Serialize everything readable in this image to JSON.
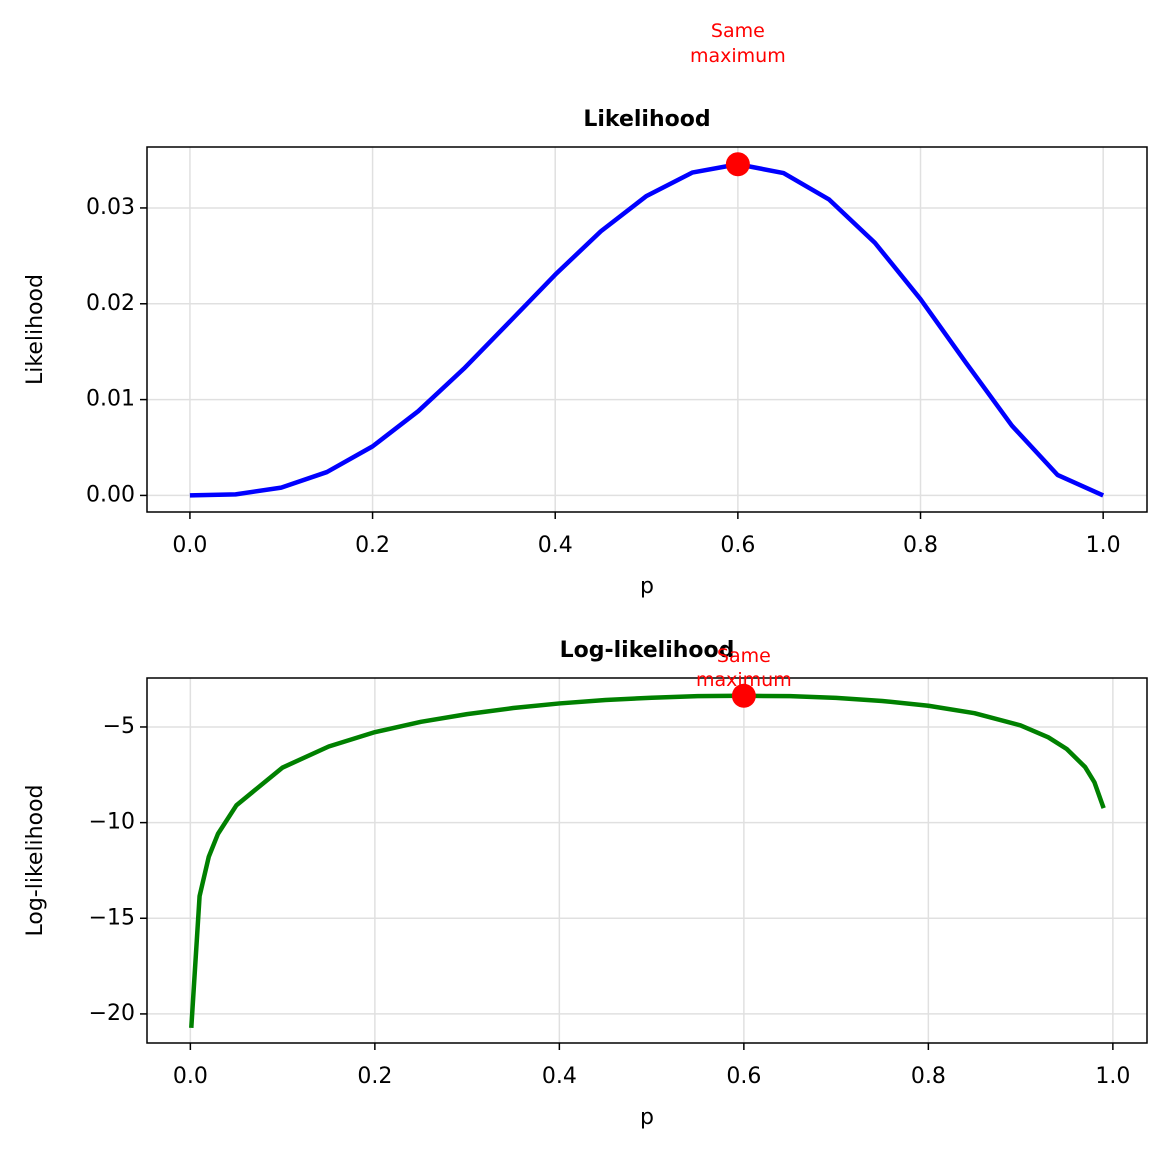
{
  "chart_data": [
    {
      "type": "line",
      "title": "Likelihood",
      "xlabel": "p",
      "ylabel": "Likelihood",
      "x": [
        0,
        0.05,
        0.1,
        0.15,
        0.2,
        0.25,
        0.3,
        0.35,
        0.4,
        0.45,
        0.5,
        0.55,
        0.6,
        0.65,
        0.7,
        0.75,
        0.8,
        0.85,
        0.9,
        0.95,
        1.0
      ],
      "series": [
        {
          "color": "#0000ff",
          "values": [
            0,
            0.000113,
            0.00081,
            0.002438,
            0.00512,
            0.008789,
            0.01323,
            0.018115,
            0.02304,
            0.027565,
            0.03125,
            0.033691,
            0.03456,
            0.033642,
            0.03087,
            0.026367,
            0.02048,
            0.013818,
            0.00729,
            0.002143,
            0
          ]
        }
      ],
      "marker": {
        "x": 0.6,
        "y": 0.03456,
        "color": "#ff0000"
      },
      "annotation": {
        "text": "Same\nmaximum",
        "color": "#ff0000"
      },
      "xlim": [
        -0.047,
        1.048
      ],
      "ylim": [
        -0.00173,
        0.03636
      ],
      "xticks": [
        {
          "value": 0,
          "label": "0.0"
        },
        {
          "value": 0.2,
          "label": "0.2"
        },
        {
          "value": 0.4,
          "label": "0.4"
        },
        {
          "value": 0.6,
          "label": "0.6"
        },
        {
          "value": 0.8,
          "label": "0.8"
        },
        {
          "value": 1.0,
          "label": "1.0"
        }
      ],
      "yticks": [
        {
          "value": 0,
          "label": "0.00"
        },
        {
          "value": 0.01,
          "label": "0.01"
        },
        {
          "value": 0.02,
          "label": "0.02"
        },
        {
          "value": 0.03,
          "label": "0.03"
        }
      ],
      "grid": true
    },
    {
      "type": "line",
      "title": "Log-likelihood",
      "xlabel": "p",
      "ylabel": "Log-likelihood",
      "x": [
        0.001,
        0.01,
        0.02,
        0.03,
        0.05,
        0.1,
        0.15,
        0.2,
        0.25,
        0.3,
        0.35,
        0.4,
        0.45,
        0.5,
        0.55,
        0.6,
        0.65,
        0.7,
        0.75,
        0.8,
        0.85,
        0.9,
        0.93,
        0.95,
        0.97,
        0.98,
        0.99
      ],
      "series": [
        {
          "color": "#008000",
          "values": [
            -20.73,
            -13.84,
            -11.78,
            -10.58,
            -9.09,
            -7.12,
            -6.02,
            -5.27,
            -4.73,
            -4.33,
            -4.01,
            -3.77,
            -3.59,
            -3.47,
            -3.39,
            -3.37,
            -3.39,
            -3.48,
            -3.64,
            -3.89,
            -4.28,
            -4.92,
            -5.54,
            -6.15,
            -7.1,
            -7.89,
            -9.24
          ]
        }
      ],
      "marker": {
        "x": 0.6,
        "y": -3.37,
        "color": "#ff0000"
      },
      "annotation": {
        "text": "Same\nmaximum",
        "color": "#ff0000"
      },
      "xlim": [
        -0.047,
        1.037
      ],
      "ylim": [
        -21.52,
        -2.44
      ],
      "xticks": [
        {
          "value": 0,
          "label": "0.0"
        },
        {
          "value": 0.2,
          "label": "0.2"
        },
        {
          "value": 0.4,
          "label": "0.4"
        },
        {
          "value": 0.6,
          "label": "0.6"
        },
        {
          "value": 0.8,
          "label": "0.8"
        },
        {
          "value": 1.0,
          "label": "1.0"
        }
      ],
      "yticks": [
        {
          "value": -20,
          "label": "−20"
        },
        {
          "value": -15,
          "label": "−15"
        },
        {
          "value": -10,
          "label": "−10"
        },
        {
          "value": -5,
          "label": "−5"
        }
      ],
      "grid": true
    }
  ]
}
